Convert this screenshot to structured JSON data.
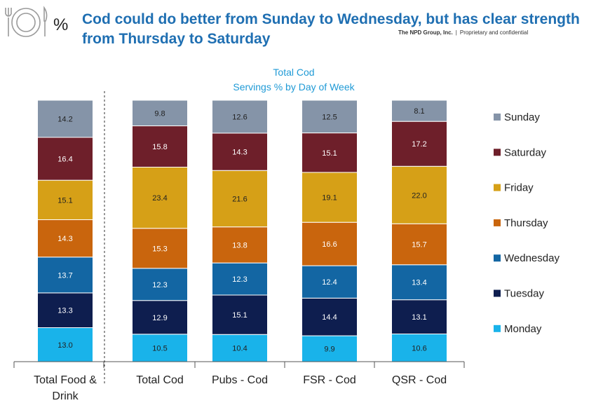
{
  "header": {
    "icon_symbol": "%",
    "title": "Cod could do better from Sunday to Wednesday, but has clear strength from Thursday to Saturday",
    "source_company": "The NPD Group, Inc.",
    "source_separator": "|",
    "source_note": "Proprietary and confidential"
  },
  "icons": {
    "logo": "plate-with-cutlery-icon"
  },
  "colors": {
    "title": "#1f6fb2",
    "chart_title": "#1f9ad6",
    "Monday": "#19b3ea",
    "Tuesday": "#0e1e4f",
    "Wednesday": "#1366a3",
    "Thursday": "#c9650d",
    "Friday": "#d6a017",
    "Saturday": "#6e1f2a",
    "Sunday": "#8594a8"
  },
  "chart_data": {
    "type": "bar",
    "stacked": true,
    "title": "Total Cod",
    "subtitle": "Servings % by Day of Week",
    "categories": [
      "Total Food & Drink",
      "Total Cod",
      "Pubs - Cod",
      "FSR - Cod",
      "QSR - Cod"
    ],
    "series": [
      {
        "name": "Monday",
        "values": [
          13.0,
          10.5,
          10.4,
          9.9,
          10.6
        ]
      },
      {
        "name": "Tuesday",
        "values": [
          13.3,
          12.9,
          15.1,
          14.4,
          13.1
        ]
      },
      {
        "name": "Wednesday",
        "values": [
          13.7,
          12.3,
          12.3,
          12.4,
          13.4
        ]
      },
      {
        "name": "Thursday",
        "values": [
          14.3,
          15.3,
          13.8,
          16.6,
          15.7
        ]
      },
      {
        "name": "Friday",
        "values": [
          15.1,
          23.4,
          21.6,
          19.1,
          22.0
        ]
      },
      {
        "name": "Saturday",
        "values": [
          16.4,
          15.8,
          14.3,
          15.1,
          17.2
        ]
      },
      {
        "name": "Sunday",
        "values": [
          14.2,
          9.8,
          12.6,
          12.5,
          8.1
        ]
      }
    ],
    "legend_position": "right",
    "legend_order": [
      "Sunday",
      "Saturday",
      "Friday",
      "Thursday",
      "Wednesday",
      "Tuesday",
      "Monday"
    ],
    "grid": false,
    "y_axis_visible": false,
    "divider_after_category": 0
  }
}
